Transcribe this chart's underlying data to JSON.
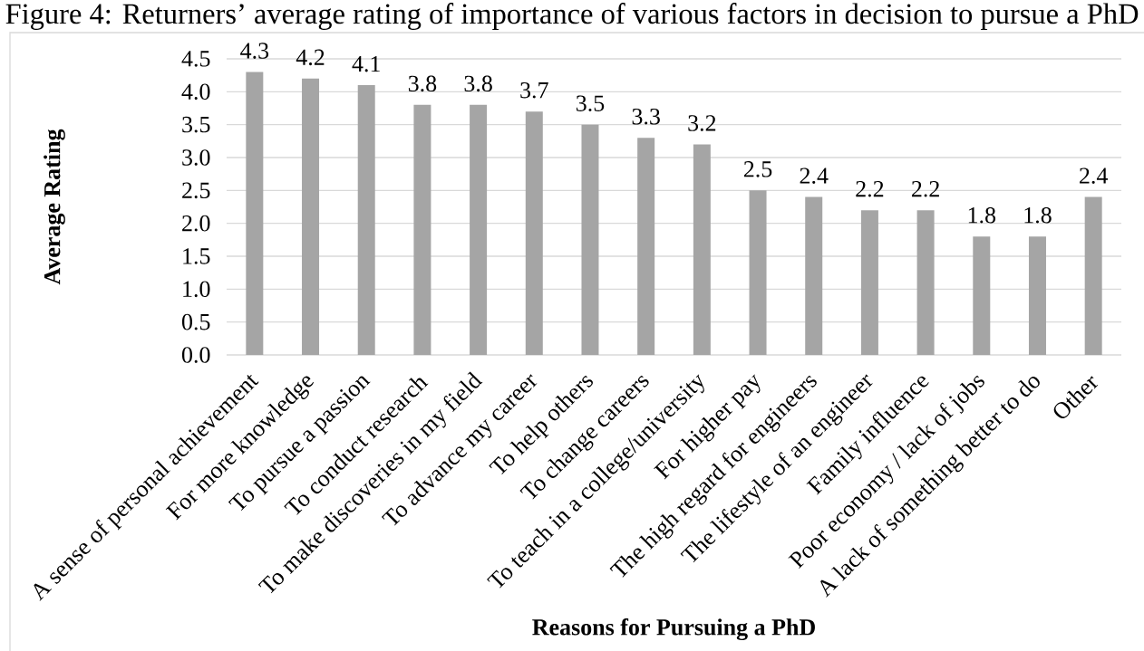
{
  "chart_data": {
    "type": "bar",
    "title": "Figure 4: Returners’ average rating of importance of various factors in decision to pursue a PhD",
    "xlabel": "Reasons for Pursuing a PhD",
    "ylabel": "Average Rating",
    "categories": [
      "A sense of personal achievement",
      "For more knowledge",
      "To pursue a passion",
      "To conduct research",
      "To make discoveries in my field",
      "To advance my career",
      "To help others",
      "To change careers",
      "To teach in a college/university",
      "For higher pay",
      "The high regard for engineers",
      "The lifestyle of an engineer",
      "Family influence",
      "Poor economy / lack of jobs",
      "A lack of something better to do",
      "Other"
    ],
    "values": [
      4.3,
      4.2,
      4.1,
      3.8,
      3.8,
      3.7,
      3.5,
      3.3,
      3.2,
      2.5,
      2.4,
      2.2,
      2.2,
      1.8,
      1.8,
      2.4
    ],
    "color": "#a5a5a5",
    "ylim": [
      0,
      4.5
    ],
    "yticks": [
      {
        "value": 0,
        "label": "0.0"
      },
      0.5,
      {
        "value": 1,
        "label": "1.0"
      },
      1.5,
      {
        "value": 2,
        "label": "2.0"
      },
      2.5,
      {
        "value": 3,
        "label": "3.0"
      },
      3.5,
      {
        "value": 4,
        "label": "4.0"
      },
      4.5
    ],
    "grid": "y",
    "data_labels": true
  }
}
